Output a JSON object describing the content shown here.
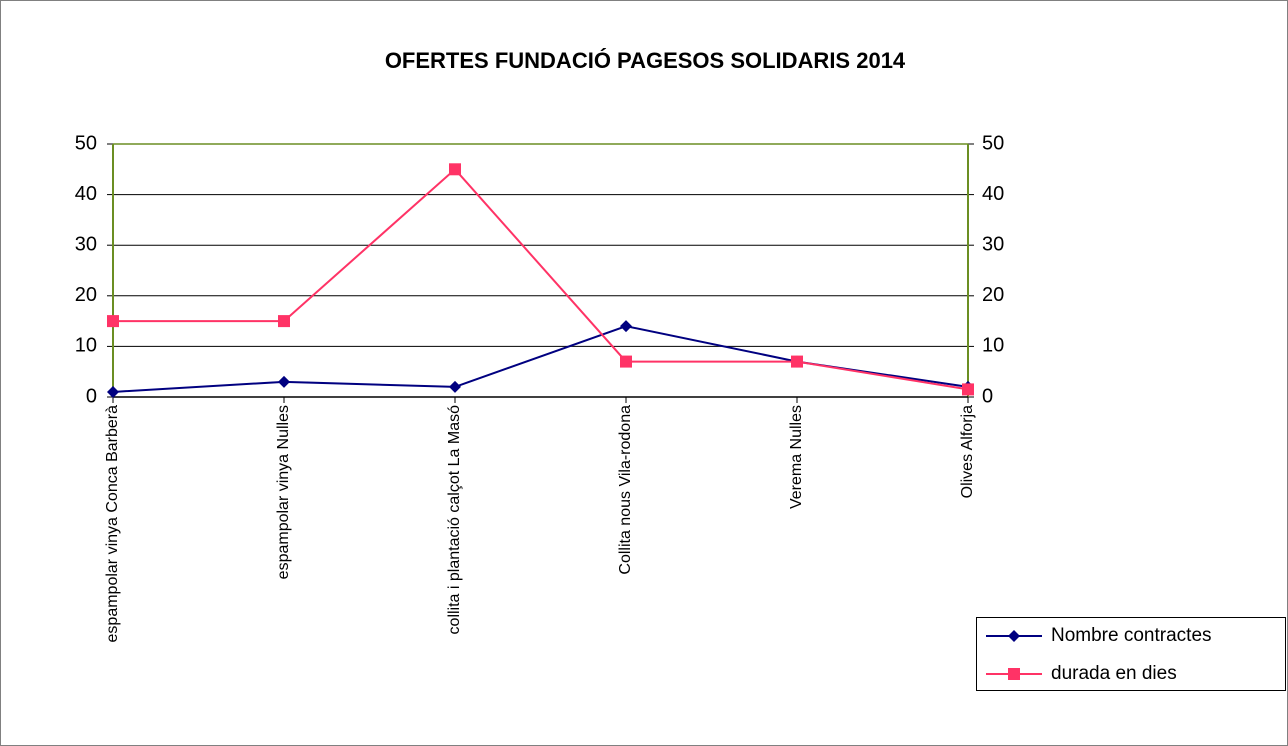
{
  "chart_data": {
    "type": "line",
    "title": "OFERTES FUNDACIÓ PAGESOS SOLIDARIS 2014",
    "categories": [
      "espampolar vinya Conca Barberà",
      "espampolar vinya Nulles",
      "collita i plantació calçot La Masó",
      "Collita nous Vila-rodona",
      "Verema Nulles",
      "Olives Alforja"
    ],
    "series": [
      {
        "name": "Nombre contractes",
        "color": "#000080",
        "values": [
          1,
          3,
          2,
          14,
          7,
          2
        ]
      },
      {
        "name": "durada en dies",
        "color": "#ff3366",
        "axis": "y2",
        "values": [
          15,
          15,
          45,
          7,
          7,
          1.5
        ]
      }
    ],
    "ylim": [
      0,
      50
    ],
    "yticks": [
      0,
      10,
      20,
      30,
      40,
      50
    ],
    "y2lim": [
      0,
      50
    ],
    "y2ticks": [
      0,
      10,
      20,
      30,
      40,
      50
    ],
    "grid": true,
    "legend": "lower right"
  }
}
